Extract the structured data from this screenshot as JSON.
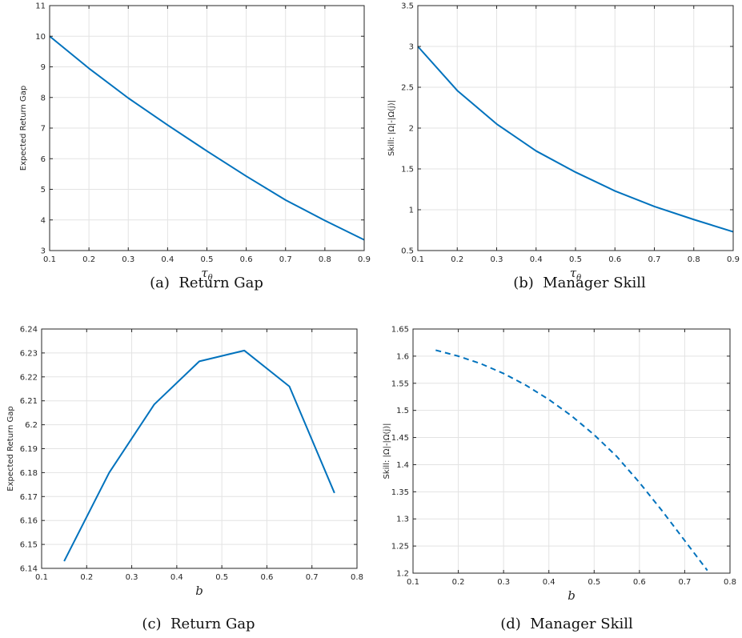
{
  "line_color": "#0072BD",
  "grid_color": "#e3e3e3",
  "axis_color": "#262626",
  "chart_data": [
    {
      "id": "a",
      "type": "line",
      "caption": "(a)  Return Gap",
      "xlabel": "τ",
      "xlabel_sub": "θ",
      "ylabel": "Expected Return Gap",
      "xlim": [
        0.1,
        0.9
      ],
      "ylim": [
        3,
        11
      ],
      "xticks": [
        0.1,
        0.2,
        0.3,
        0.4,
        0.5,
        0.6,
        0.7,
        0.8,
        0.9
      ],
      "xtick_labels": [
        "0.1",
        "0.2",
        "0.3",
        "0.4",
        "0.5",
        "0.6",
        "0.7",
        "0.8",
        "0.9"
      ],
      "yticks": [
        3,
        4,
        5,
        6,
        7,
        8,
        9,
        10,
        11
      ],
      "ytick_labels": [
        "3",
        "4",
        "5",
        "6",
        "7",
        "8",
        "9",
        "10",
        "11"
      ],
      "grid": true,
      "series": [
        {
          "line_style": "solid",
          "x": [
            0.1,
            0.2,
            0.3,
            0.4,
            0.5,
            0.6,
            0.7,
            0.8,
            0.9
          ],
          "y": [
            10.0,
            8.95,
            7.98,
            7.1,
            6.25,
            5.43,
            4.65,
            3.98,
            3.35
          ]
        }
      ]
    },
    {
      "id": "b",
      "type": "line",
      "caption": "(b)  Manager Skill",
      "xlabel": "τ",
      "xlabel_sub": "θ",
      "ylabel": "Skill: |Ω|-|Ω(j)|",
      "xlim": [
        0.1,
        0.9
      ],
      "ylim": [
        0.5,
        3.5
      ],
      "xticks": [
        0.1,
        0.2,
        0.3,
        0.4,
        0.5,
        0.6,
        0.7,
        0.8,
        0.9
      ],
      "xtick_labels": [
        "0.1",
        "0.2",
        "0.3",
        "0.4",
        "0.5",
        "0.6",
        "0.7",
        "0.8",
        "0.9"
      ],
      "yticks": [
        0.5,
        1,
        1.5,
        2,
        2.5,
        3,
        3.5
      ],
      "ytick_labels": [
        "0.5",
        "1",
        "1.5",
        "2",
        "2.5",
        "3",
        "3.5"
      ],
      "grid": true,
      "series": [
        {
          "line_style": "solid",
          "x": [
            0.1,
            0.2,
            0.3,
            0.4,
            0.5,
            0.6,
            0.7,
            0.8,
            0.9
          ],
          "y": [
            3.0,
            2.46,
            2.05,
            1.72,
            1.46,
            1.23,
            1.04,
            0.88,
            0.73
          ]
        }
      ]
    },
    {
      "id": "c",
      "type": "line",
      "caption": "(c)  Return Gap",
      "xlabel": "b",
      "xlabel_sub": "",
      "ylabel": "Expected Return Gap",
      "xlim": [
        0.1,
        0.8
      ],
      "ylim": [
        6.14,
        6.24
      ],
      "xticks": [
        0.1,
        0.2,
        0.3,
        0.4,
        0.5,
        0.6,
        0.7,
        0.8
      ],
      "xtick_labels": [
        "0.1",
        "0.2",
        "0.3",
        "0.4",
        "0.5",
        "0.6",
        "0.7",
        "0.8"
      ],
      "yticks": [
        6.14,
        6.15,
        6.16,
        6.17,
        6.18,
        6.19,
        6.2,
        6.21,
        6.22,
        6.23,
        6.24
      ],
      "ytick_labels": [
        "6.14",
        "6.15",
        "6.16",
        "6.17",
        "6.18",
        "6.19",
        "6.2",
        "6.21",
        "6.22",
        "6.23",
        "6.24"
      ],
      "grid": true,
      "series": [
        {
          "line_style": "solid",
          "x": [
            0.15,
            0.25,
            0.35,
            0.45,
            0.55,
            0.65,
            0.75
          ],
          "y": [
            6.143,
            6.18,
            6.2085,
            6.2265,
            6.231,
            6.216,
            6.1715
          ]
        }
      ]
    },
    {
      "id": "d",
      "type": "line",
      "caption": "(d)  Manager Skill",
      "xlabel": "b",
      "xlabel_sub": "",
      "ylabel": "Skill: |Ω|-|Ω(j)|",
      "xlim": [
        0.1,
        0.8
      ],
      "ylim": [
        1.2,
        1.65
      ],
      "xticks": [
        0.1,
        0.2,
        0.3,
        0.4,
        0.5,
        0.6,
        0.7,
        0.8
      ],
      "xtick_labels": [
        "0.1",
        "0.2",
        "0.3",
        "0.4",
        "0.5",
        "0.6",
        "0.7",
        "0.8"
      ],
      "yticks": [
        1.2,
        1.25,
        1.3,
        1.35,
        1.4,
        1.45,
        1.5,
        1.55,
        1.6,
        1.65
      ],
      "ytick_labels": [
        "1.2",
        "1.25",
        "1.3",
        "1.35",
        "1.4",
        "1.45",
        "1.5",
        "1.55",
        "1.6",
        "1.65"
      ],
      "grid": true,
      "series": [
        {
          "line_style": "dashed",
          "x": [
            0.15,
            0.2,
            0.25,
            0.3,
            0.35,
            0.4,
            0.45,
            0.5,
            0.55,
            0.6,
            0.65,
            0.7,
            0.75
          ],
          "y": [
            1.611,
            1.6,
            1.586,
            1.568,
            1.546,
            1.52,
            1.49,
            1.455,
            1.415,
            1.367,
            1.315,
            1.26,
            1.205
          ]
        }
      ]
    }
  ]
}
